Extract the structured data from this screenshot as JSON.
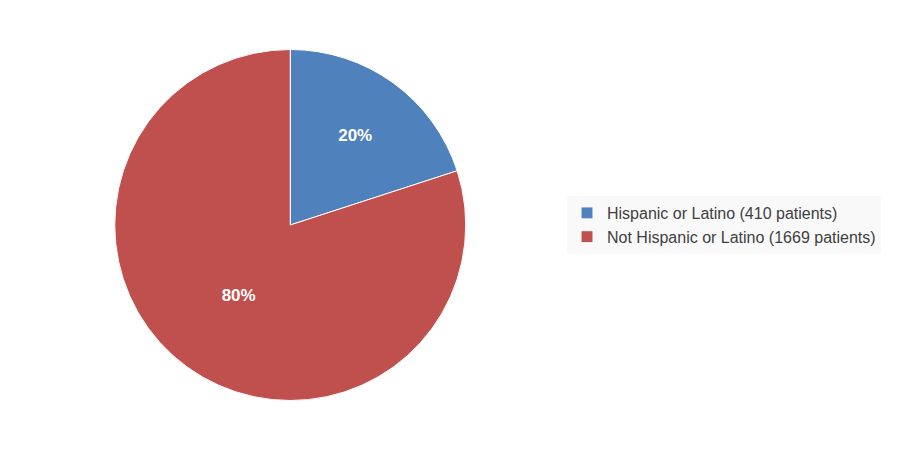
{
  "chart_data": {
    "type": "pie",
    "categories": [
      "Hispanic or Latino (410 patients)",
      "Not Hispanic or Latino (1669 patients)"
    ],
    "values": [
      20,
      80
    ],
    "value_labels": [
      "20%",
      "80%"
    ],
    "colors": [
      "#4f81bd",
      "#c0504d"
    ],
    "data_labels": true,
    "legend": "right"
  }
}
